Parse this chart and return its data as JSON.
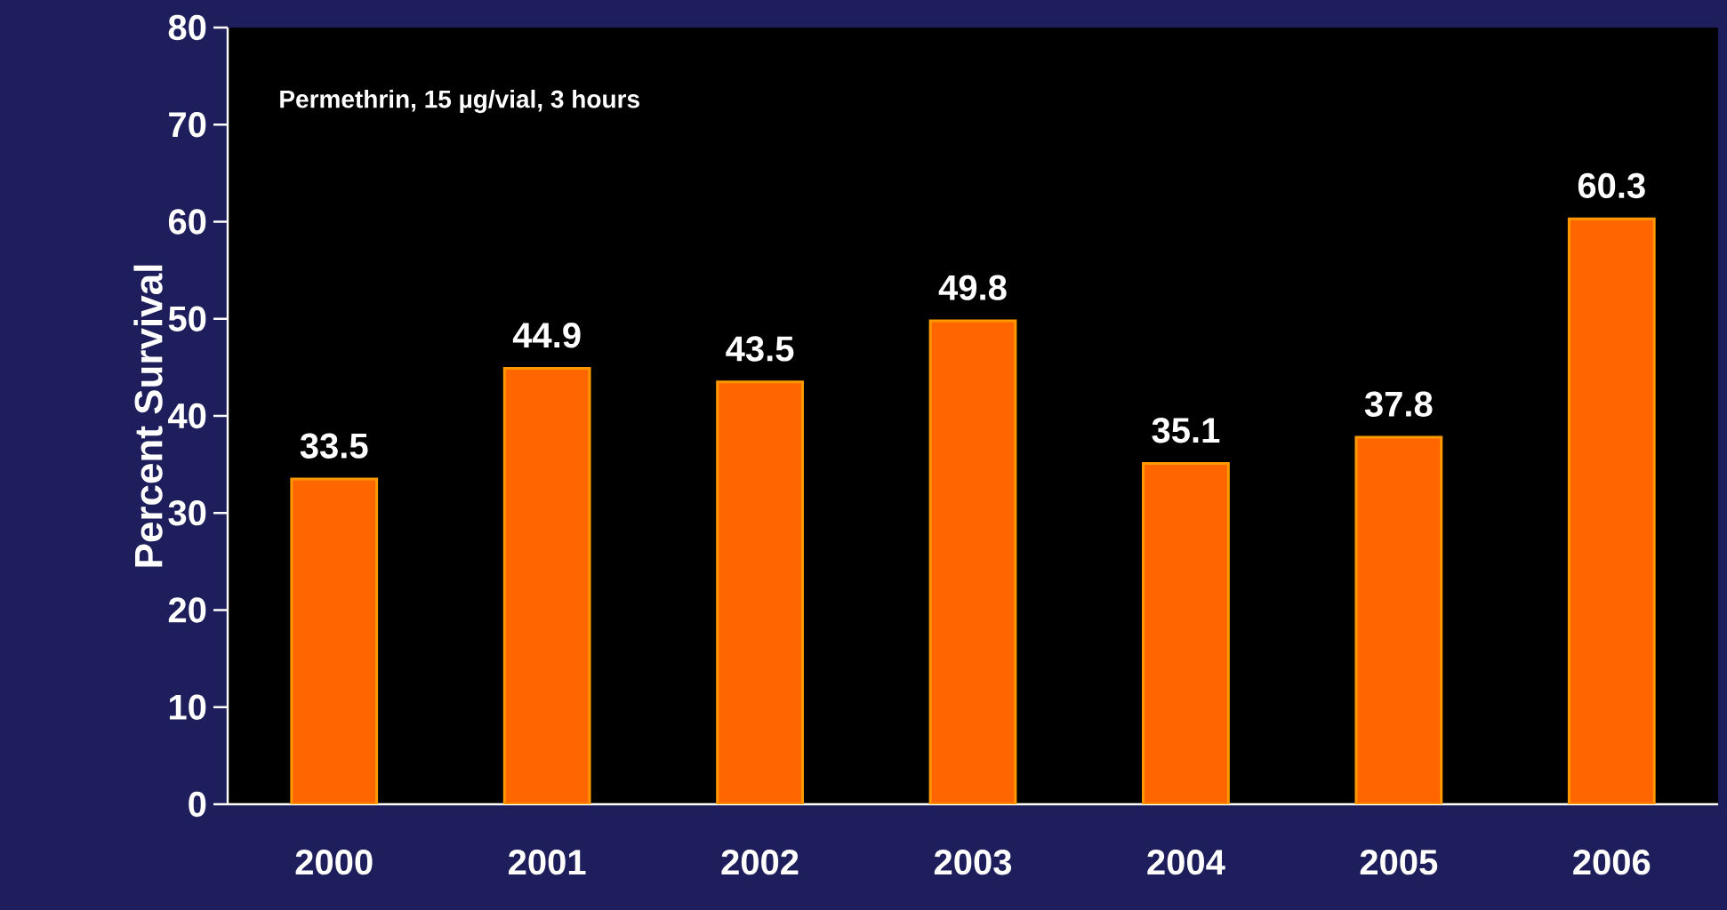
{
  "chart_data": {
    "type": "bar",
    "ylabel": "Percent Survival",
    "annotations": [
      "Permethrin, 15 µg/vial, 3 hours"
    ],
    "categories": [
      "2000",
      "2001",
      "2002",
      "2003",
      "2004",
      "2005",
      "2006"
    ],
    "values": [
      33.5,
      44.9,
      43.5,
      49.8,
      35.1,
      37.8,
      60.3
    ],
    "color": "#ff6600",
    "ylim": [
      0,
      80
    ],
    "yticks": [
      0,
      10,
      20,
      30,
      40,
      50,
      60,
      70,
      80
    ],
    "data_labels": true
  }
}
